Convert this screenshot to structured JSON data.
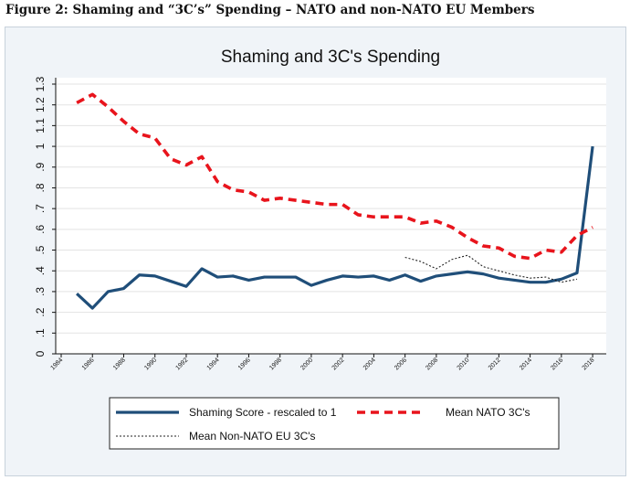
{
  "figure_caption": "Figure 2: Shaming and “3C’s” Spending – NATO and non-NATO EU Members",
  "chart_data": {
    "type": "line",
    "title": "Shaming and 3C's Spending",
    "xlabel": "",
    "ylabel": "",
    "xlim": [
      1984,
      2018
    ],
    "ylim": [
      0,
      1.3
    ],
    "x_ticks": [
      "1984",
      "1986",
      "1988",
      "1990",
      "1992",
      "1994",
      "1996",
      "1998",
      "2000",
      "2002",
      "2004",
      "2006",
      "2008",
      "2010",
      "2012",
      "2014",
      "2016",
      "2018"
    ],
    "y_ticks": [
      "0",
      ".1",
      ".2",
      ".3",
      ".4",
      ".5",
      ".6",
      ".7",
      ".8",
      ".9",
      "1",
      "1.1",
      "1.2",
      "1.3"
    ],
    "grid": "horizontal",
    "legend_position": "bottom",
    "series": [
      {
        "name": "Shaming Score - rescaled to 1",
        "style": "solid",
        "color": "#1f4e79",
        "x": [
          1985,
          1986,
          1987,
          1988,
          1989,
          1990,
          1991,
          1992,
          1993,
          1994,
          1995,
          1996,
          1997,
          1998,
          1999,
          2000,
          2001,
          2002,
          2003,
          2004,
          2005,
          2006,
          2007,
          2008,
          2009,
          2010,
          2011,
          2012,
          2013,
          2014,
          2015,
          2016,
          2017,
          2018
        ],
        "values": [
          0.29,
          0.22,
          0.3,
          0.315,
          0.38,
          0.375,
          0.35,
          0.325,
          0.41,
          0.37,
          0.375,
          0.355,
          0.37,
          0.37,
          0.37,
          0.33,
          0.355,
          0.375,
          0.37,
          0.375,
          0.355,
          0.38,
          0.35,
          0.375,
          0.385,
          0.395,
          0.385,
          0.365,
          0.355,
          0.345,
          0.345,
          0.36,
          0.39,
          1.0
        ]
      },
      {
        "name": "Mean NATO 3C's",
        "style": "dashed",
        "color": "#e8141c",
        "x": [
          1985,
          1986,
          1987,
          1988,
          1989,
          1990,
          1991,
          1992,
          1993,
          1994,
          1995,
          1996,
          1997,
          1998,
          1999,
          2000,
          2001,
          2002,
          2003,
          2004,
          2005,
          2006,
          2007,
          2008,
          2009,
          2010,
          2011,
          2012,
          2013,
          2014,
          2015,
          2016,
          2017,
          2018
        ],
        "values": [
          1.21,
          1.25,
          1.19,
          1.12,
          1.06,
          1.04,
          0.94,
          0.91,
          0.95,
          0.83,
          0.79,
          0.78,
          0.74,
          0.75,
          0.74,
          0.73,
          0.72,
          0.72,
          0.67,
          0.66,
          0.66,
          0.66,
          0.63,
          0.64,
          0.61,
          0.56,
          0.52,
          0.51,
          0.47,
          0.46,
          0.5,
          0.49,
          0.57,
          0.61
        ]
      },
      {
        "name": "Mean Non-NATO EU 3C's",
        "style": "dotted",
        "color": "#222222",
        "x": [
          2006,
          2007,
          2008,
          2009,
          2010,
          2011,
          2012,
          2013,
          2014,
          2015,
          2016,
          2017
        ],
        "values": [
          0.465,
          0.445,
          0.41,
          0.455,
          0.475,
          0.42,
          0.4,
          0.38,
          0.365,
          0.37,
          0.345,
          0.36
        ]
      }
    ]
  }
}
